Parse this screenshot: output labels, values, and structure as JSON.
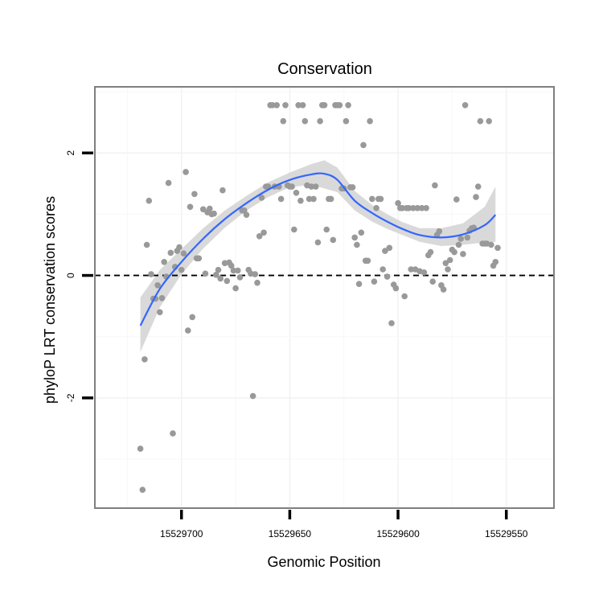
{
  "chart_data": {
    "type": "scatter",
    "title": "Conservation",
    "xlabel": "Genomic Position",
    "ylabel": "phyloP LRT conservation scores",
    "x_reversed": true,
    "xlim": [
      15529740,
      15529528
    ],
    "ylim": [
      -3.8,
      3.08
    ],
    "x_ticks": [
      15529700,
      15529650,
      15529600,
      15529550
    ],
    "x_tick_labels": [
      "15529700",
      "15529650",
      "15529600",
      "15529550"
    ],
    "y_ticks": [
      -2,
      0,
      2
    ],
    "y_tick_labels": [
      "-2",
      "0",
      "2"
    ],
    "x_minor_gridlines": [
      15529725,
      15529675,
      15529625,
      15529575
    ],
    "y_minor_gridlines": [
      -3,
      -1,
      1,
      3
    ],
    "reference_line": {
      "y": 0,
      "style": "dashed",
      "color": "#000000"
    },
    "point_color": "#999999",
    "smooth_color": "#3366ff",
    "band_color": "#d9d9d9",
    "panel_border_color": "#7f7f7f",
    "points": [
      {
        "x": 15529719,
        "y": -2.83
      },
      {
        "x": 15529718,
        "y": -3.5
      },
      {
        "x": 15529717,
        "y": -1.37
      },
      {
        "x": 15529716,
        "y": 0.5
      },
      {
        "x": 15529715,
        "y": 1.22
      },
      {
        "x": 15529714,
        "y": 0.02
      },
      {
        "x": 15529713,
        "y": -0.38
      },
      {
        "x": 15529712,
        "y": -0.38
      },
      {
        "x": 15529711,
        "y": -0.16
      },
      {
        "x": 15529710,
        "y": -0.6
      },
      {
        "x": 15529709,
        "y": -0.37
      },
      {
        "x": 15529708,
        "y": 0.22
      },
      {
        "x": 15529707,
        "y": -0.02
      },
      {
        "x": 15529706,
        "y": 1.51
      },
      {
        "x": 15529705,
        "y": 0.37
      },
      {
        "x": 15529704,
        "y": -2.58
      },
      {
        "x": 15529703,
        "y": 0.14
      },
      {
        "x": 15529702,
        "y": 0.4
      },
      {
        "x": 15529701,
        "y": 0.46
      },
      {
        "x": 15529700,
        "y": 0.09
      },
      {
        "x": 15529699,
        "y": 0.36
      },
      {
        "x": 15529698,
        "y": 1.69
      },
      {
        "x": 15529697,
        "y": -0.9
      },
      {
        "x": 15529696,
        "y": 1.12
      },
      {
        "x": 15529695,
        "y": -0.68
      },
      {
        "x": 15529694,
        "y": 1.33
      },
      {
        "x": 15529693,
        "y": 0.28
      },
      {
        "x": 15529692,
        "y": 0.28
      },
      {
        "x": 15529690,
        "y": 1.08
      },
      {
        "x": 15529689,
        "y": 0.03
      },
      {
        "x": 15529688,
        "y": 1.03
      },
      {
        "x": 15529687,
        "y": 1.09
      },
      {
        "x": 15529686,
        "y": 1.0
      },
      {
        "x": 15529685,
        "y": 1.01
      },
      {
        "x": 15529684,
        "y": 0.01
      },
      {
        "x": 15529683,
        "y": 0.09
      },
      {
        "x": 15529682,
        "y": -0.05
      },
      {
        "x": 15529681,
        "y": 1.39
      },
      {
        "x": 15529680,
        "y": 0.2
      },
      {
        "x": 15529679,
        "y": -0.09
      },
      {
        "x": 15529678,
        "y": 0.21
      },
      {
        "x": 15529677,
        "y": 0.16
      },
      {
        "x": 15529676,
        "y": 0.08
      },
      {
        "x": 15529675,
        "y": -0.21
      },
      {
        "x": 15529674,
        "y": 0.08
      },
      {
        "x": 15529673,
        "y": -0.03
      },
      {
        "x": 15529672,
        "y": 1.06
      },
      {
        "x": 15529671,
        "y": 1.06
      },
      {
        "x": 15529670,
        "y": 0.99
      },
      {
        "x": 15529669,
        "y": 0.09
      },
      {
        "x": 15529668,
        "y": 0.03
      },
      {
        "x": 15529667,
        "y": -1.97
      },
      {
        "x": 15529666,
        "y": 0.02
      },
      {
        "x": 15529665,
        "y": -0.12
      },
      {
        "x": 15529664,
        "y": 0.64
      },
      {
        "x": 15529663,
        "y": 1.27
      },
      {
        "x": 15529662,
        "y": 0.7
      },
      {
        "x": 15529661,
        "y": 1.45
      },
      {
        "x": 15529660,
        "y": 1.45
      },
      {
        "x": 15529659,
        "y": 2.78
      },
      {
        "x": 15529658,
        "y": 2.78
      },
      {
        "x": 15529657,
        "y": 1.45
      },
      {
        "x": 15529656,
        "y": 2.78
      },
      {
        "x": 15529655,
        "y": 1.45
      },
      {
        "x": 15529654,
        "y": 1.25
      },
      {
        "x": 15529653,
        "y": 2.52
      },
      {
        "x": 15529652,
        "y": 2.78
      },
      {
        "x": 15529651,
        "y": 1.47
      },
      {
        "x": 15529650,
        "y": 1.45
      },
      {
        "x": 15529649,
        "y": 1.45
      },
      {
        "x": 15529648,
        "y": 0.75
      },
      {
        "x": 15529647,
        "y": 1.35
      },
      {
        "x": 15529646,
        "y": 2.78
      },
      {
        "x": 15529645,
        "y": 1.22
      },
      {
        "x": 15529644,
        "y": 2.78
      },
      {
        "x": 15529643,
        "y": 2.52
      },
      {
        "x": 15529642,
        "y": 1.47
      },
      {
        "x": 15529641,
        "y": 1.25
      },
      {
        "x": 15529640,
        "y": 1.45
      },
      {
        "x": 15529639,
        "y": 1.25
      },
      {
        "x": 15529638,
        "y": 1.45
      },
      {
        "x": 15529637,
        "y": 0.54
      },
      {
        "x": 15529636,
        "y": 2.52
      },
      {
        "x": 15529635,
        "y": 2.78
      },
      {
        "x": 15529634,
        "y": 2.78
      },
      {
        "x": 15529633,
        "y": 0.75
      },
      {
        "x": 15529632,
        "y": 1.25
      },
      {
        "x": 15529631,
        "y": 1.25
      },
      {
        "x": 15529630,
        "y": 0.58
      },
      {
        "x": 15529629,
        "y": 2.78
      },
      {
        "x": 15529628,
        "y": 2.78
      },
      {
        "x": 15529627,
        "y": 2.78
      },
      {
        "x": 15529626,
        "y": 1.42
      },
      {
        "x": 15529625,
        "y": 1.42
      },
      {
        "x": 15529624,
        "y": 2.52
      },
      {
        "x": 15529623,
        "y": 2.78
      },
      {
        "x": 15529622,
        "y": 1.44
      },
      {
        "x": 15529621,
        "y": 1.44
      },
      {
        "x": 15529620,
        "y": 0.62
      },
      {
        "x": 15529619,
        "y": 0.5
      },
      {
        "x": 15529618,
        "y": -0.14
      },
      {
        "x": 15529617,
        "y": 0.7
      },
      {
        "x": 15529616,
        "y": 2.13
      },
      {
        "x": 15529615,
        "y": 0.24
      },
      {
        "x": 15529614,
        "y": 0.24
      },
      {
        "x": 15529613,
        "y": 2.52
      },
      {
        "x": 15529612,
        "y": 1.25
      },
      {
        "x": 15529611,
        "y": -0.1
      },
      {
        "x": 15529610,
        "y": 1.1
      },
      {
        "x": 15529609,
        "y": 1.25
      },
      {
        "x": 15529608,
        "y": 1.25
      },
      {
        "x": 15529607,
        "y": 0.1
      },
      {
        "x": 15529606,
        "y": 0.4
      },
      {
        "x": 15529605,
        "y": -0.02
      },
      {
        "x": 15529604,
        "y": 0.45
      },
      {
        "x": 15529603,
        "y": -0.78
      },
      {
        "x": 15529602,
        "y": -0.15
      },
      {
        "x": 15529601,
        "y": -0.21
      },
      {
        "x": 15529600,
        "y": 1.18
      },
      {
        "x": 15529599,
        "y": 1.1
      },
      {
        "x": 15529598,
        "y": 1.1
      },
      {
        "x": 15529597,
        "y": -0.34
      },
      {
        "x": 15529596,
        "y": 1.1
      },
      {
        "x": 15529595,
        "y": 1.1
      },
      {
        "x": 15529594,
        "y": 0.1
      },
      {
        "x": 15529593,
        "y": 1.1
      },
      {
        "x": 15529592,
        "y": 0.1
      },
      {
        "x": 15529591,
        "y": 1.1
      },
      {
        "x": 15529590,
        "y": 0.07
      },
      {
        "x": 15529589,
        "y": 1.1
      },
      {
        "x": 15529588,
        "y": 0.05
      },
      {
        "x": 15529587,
        "y": 1.1
      },
      {
        "x": 15529586,
        "y": 0.33
      },
      {
        "x": 15529585,
        "y": 0.38
      },
      {
        "x": 15529584,
        "y": -0.1
      },
      {
        "x": 15529583,
        "y": 1.47
      },
      {
        "x": 15529582,
        "y": 0.66
      },
      {
        "x": 15529581,
        "y": 0.72
      },
      {
        "x": 15529580,
        "y": -0.16
      },
      {
        "x": 15529579,
        "y": -0.23
      },
      {
        "x": 15529578,
        "y": 0.2
      },
      {
        "x": 15529577,
        "y": 0.1
      },
      {
        "x": 15529576,
        "y": 0.25
      },
      {
        "x": 15529575,
        "y": 0.42
      },
      {
        "x": 15529574,
        "y": 0.38
      },
      {
        "x": 15529573,
        "y": 1.24
      },
      {
        "x": 15529572,
        "y": 0.5
      },
      {
        "x": 15529571,
        "y": 0.6
      },
      {
        "x": 15529570,
        "y": 0.35
      },
      {
        "x": 15529569,
        "y": 2.78
      },
      {
        "x": 15529568,
        "y": 0.62
      },
      {
        "x": 15529567,
        "y": 0.73
      },
      {
        "x": 15529566,
        "y": 0.77
      },
      {
        "x": 15529565,
        "y": 0.78
      },
      {
        "x": 15529564,
        "y": 1.28
      },
      {
        "x": 15529563,
        "y": 1.45
      },
      {
        "x": 15529562,
        "y": 2.52
      },
      {
        "x": 15529561,
        "y": 0.52
      },
      {
        "x": 15529560,
        "y": 0.52
      },
      {
        "x": 15529559,
        "y": 0.52
      },
      {
        "x": 15529558,
        "y": 2.52
      },
      {
        "x": 15529557,
        "y": 0.5
      },
      {
        "x": 15529556,
        "y": 0.16
      },
      {
        "x": 15529555,
        "y": 0.22
      },
      {
        "x": 15529554,
        "y": 0.45
      }
    ],
    "smooth": {
      "x": [
        15529719,
        15529710,
        15529700,
        15529690,
        15529680,
        15529670,
        15529660,
        15529650,
        15529640,
        15529634,
        15529628,
        15529620,
        15529612,
        15529605,
        15529598,
        15529590,
        15529580,
        15529570,
        15529560,
        15529555
      ],
      "y": [
        -0.82,
        -0.22,
        0.22,
        0.6,
        0.92,
        1.18,
        1.4,
        1.56,
        1.65,
        1.66,
        1.56,
        1.22,
        1.02,
        0.88,
        0.76,
        0.66,
        0.62,
        0.67,
        0.82,
        0.99
      ],
      "lower": [
        -1.25,
        -0.52,
        0.02,
        0.44,
        0.78,
        1.06,
        1.28,
        1.44,
        1.48,
        1.42,
        1.36,
        1.06,
        0.88,
        0.76,
        0.66,
        0.55,
        0.48,
        0.5,
        0.54,
        0.55
      ],
      "upper": [
        -0.36,
        0.09,
        0.43,
        0.77,
        1.06,
        1.3,
        1.52,
        1.68,
        1.82,
        1.88,
        1.76,
        1.38,
        1.15,
        1.0,
        0.87,
        0.77,
        0.77,
        0.85,
        1.12,
        1.45
      ]
    }
  }
}
